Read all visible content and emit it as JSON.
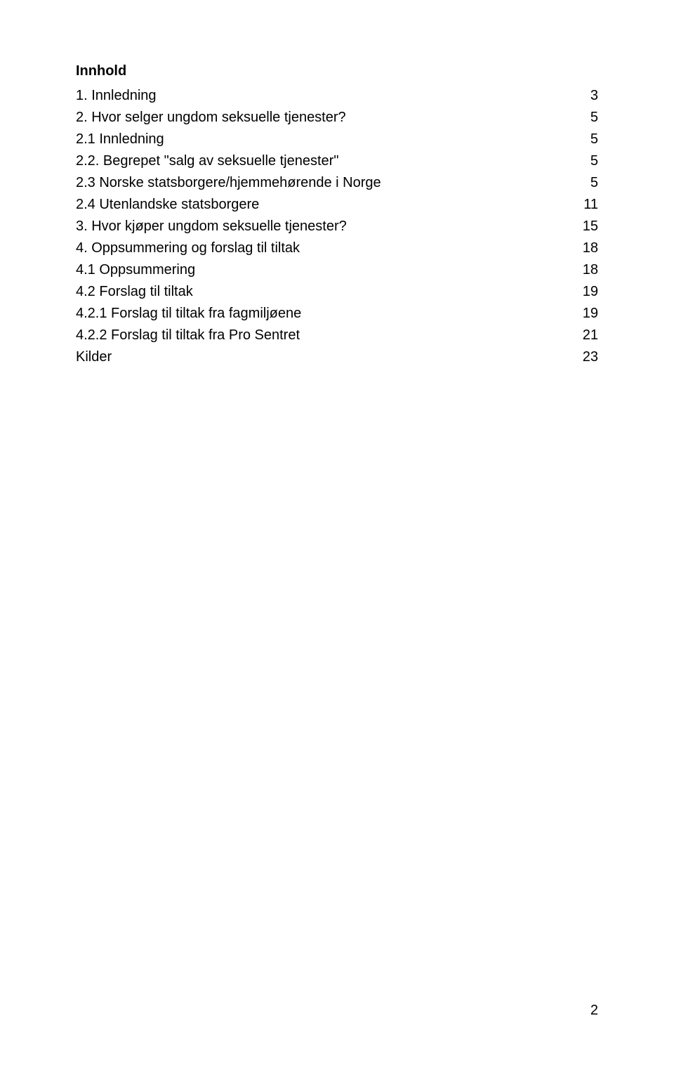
{
  "heading": "Innhold",
  "toc": [
    {
      "label": "1. Innledning ",
      "page": " 3",
      "leader": "ellipsis"
    },
    {
      "label": "2. Hvor selger ungdom seksuelle tjenester? ",
      "page": " 5",
      "leader": "ellipsis"
    },
    {
      "label": "2.1 Innledning ",
      "page": " 5",
      "leader": "ellipsis"
    },
    {
      "label": "2.2. Begrepet \"salg av seksuelle tjenester\" ",
      "page": " 5",
      "leader": "ellipsis"
    },
    {
      "label": "2.3 Norske statsborgere/hjemmehørende i Norge ",
      "page": " 5",
      "leader": "dots"
    },
    {
      "label": "2.4 Utenlandske statsborgere ",
      "page": " 11",
      "leader": "ellipsis"
    },
    {
      "label": "3. Hvor kjøper ungdom seksuelle tjenester? ",
      "page": "15",
      "leader": "dots"
    },
    {
      "label": "4. Oppsummering og forslag til tiltak ",
      "page": " 18",
      "leader": "ellipsis"
    },
    {
      "label": "4.1 Oppsummering ",
      "page": " 18",
      "leader": "ellipsis"
    },
    {
      "label": "4.2 Forslag til tiltak ",
      "page": "19",
      "leader": "ellipsis"
    },
    {
      "label": "4.2.1 Forslag til tiltak fra fagmiljøene ",
      "page": " 19",
      "leader": "ellipsis"
    },
    {
      "label": "4.2.2 Forslag til tiltak fra Pro Sentret ",
      "page": " 21",
      "leader": "ellipsis"
    },
    {
      "label": "Kilder ",
      "page": " 23",
      "leader": "ellipsis"
    }
  ],
  "page_number": "2",
  "colors": {
    "background": "#ffffff",
    "text": "#000000"
  },
  "typography": {
    "font_family": "Arial",
    "font_size_pt": 15,
    "heading_weight": "bold"
  }
}
